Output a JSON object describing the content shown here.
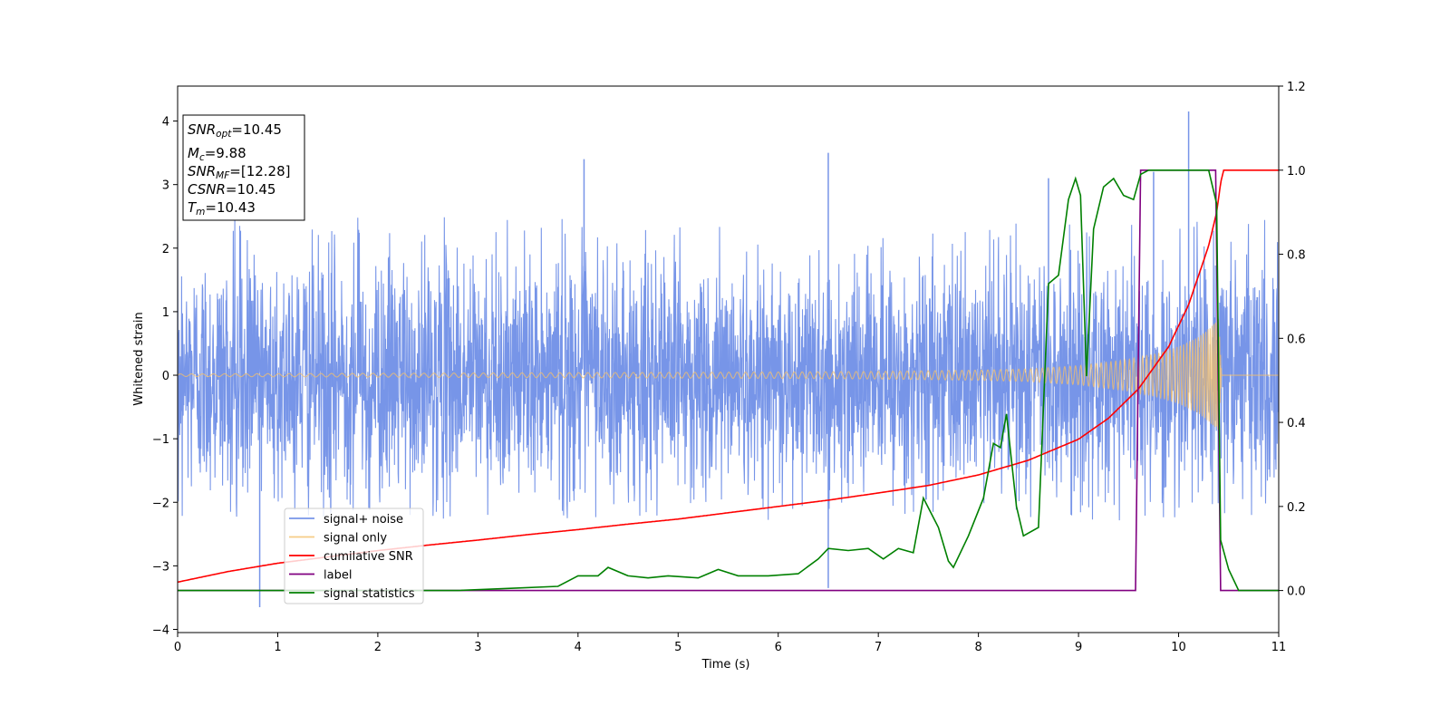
{
  "chart_data": {
    "type": "line",
    "title": "",
    "xlabel": "Time (s)",
    "ylabel": "Whitened strain",
    "xlim": [
      0,
      11
    ],
    "ylim": [
      -4.05,
      4.55
    ],
    "y2lim": [
      -0.1,
      1.2
    ],
    "grid": false,
    "legend_location": "lower-left",
    "x_ticks": [
      {
        "value": 0,
        "label": "0"
      },
      {
        "value": 1,
        "label": "1"
      },
      {
        "value": 2,
        "label": "2"
      },
      {
        "value": 3,
        "label": "3"
      },
      {
        "value": 4,
        "label": "4"
      },
      {
        "value": 5,
        "label": "5"
      },
      {
        "value": 6,
        "label": "6"
      },
      {
        "value": 7,
        "label": "7"
      },
      {
        "value": 8,
        "label": "8"
      },
      {
        "value": 9,
        "label": "9"
      },
      {
        "value": 10,
        "label": "10"
      },
      {
        "value": 11,
        "label": "11"
      }
    ],
    "y_ticks": [
      {
        "value": -4,
        "label": "−4"
      },
      {
        "value": -3,
        "label": "−3"
      },
      {
        "value": -2,
        "label": "−2"
      },
      {
        "value": -1,
        "label": "−1"
      },
      {
        "value": 0,
        "label": "0"
      },
      {
        "value": 1,
        "label": "1"
      },
      {
        "value": 2,
        "label": "2"
      },
      {
        "value": 3,
        "label": "3"
      },
      {
        "value": 4,
        "label": "4"
      }
    ],
    "y2_ticks": [
      {
        "value": 0.0,
        "label": "0.0"
      },
      {
        "value": 0.2,
        "label": "0.2"
      },
      {
        "value": 0.4,
        "label": "0.4"
      },
      {
        "value": 0.6,
        "label": "0.6"
      },
      {
        "value": 0.8,
        "label": "0.8"
      },
      {
        "value": 1.0,
        "label": "1.0"
      },
      {
        "value": 1.2,
        "label": "1.2"
      }
    ],
    "annotation": {
      "lines": [
        {
          "sym": "SNR",
          "sub": "opt",
          "value": "=10.45"
        },
        {
          "sym": "M",
          "sub": "c",
          "value": "=9.88"
        },
        {
          "sym": "SNR",
          "sub": "MF",
          "value": "=[12.28]"
        },
        {
          "sym": "CSNR",
          "sub": "",
          "value": "=10.45"
        },
        {
          "sym": "T",
          "sub": "m",
          "value": "=10.43"
        }
      ]
    },
    "series": [
      {
        "name": "signal+ noise",
        "color": "#7795e8",
        "axis": "left",
        "style": "noise",
        "noise_envelope": {
          "baseline_peak": 2.5,
          "max_excursion": 4.15,
          "min_excursion": -3.65
        },
        "notable_peaks": [
          [
            0.82,
            -3.65
          ],
          [
            4.06,
            3.4
          ],
          [
            6.5,
            3.5
          ],
          [
            6.5,
            -3.35
          ],
          [
            8.7,
            3.1
          ],
          [
            9.75,
            3.2
          ],
          [
            10.1,
            4.15
          ]
        ]
      },
      {
        "name": "signal only",
        "color": "#f5c06a",
        "axis": "left",
        "style": "chirp",
        "amplitude": [
          [
            0,
            0.02
          ],
          [
            2,
            0.03
          ],
          [
            4,
            0.04
          ],
          [
            6,
            0.05
          ],
          [
            7,
            0.06
          ],
          [
            8,
            0.08
          ],
          [
            8.5,
            0.1
          ],
          [
            9,
            0.15
          ],
          [
            9.5,
            0.25
          ],
          [
            9.8,
            0.35
          ],
          [
            10.0,
            0.45
          ],
          [
            10.2,
            0.6
          ],
          [
            10.35,
            0.8
          ],
          [
            10.4,
            0.9
          ],
          [
            10.43,
            0.0
          ],
          [
            11,
            0.0
          ]
        ]
      },
      {
        "name": "cumilative SNR",
        "color": "#ff0000",
        "axis": "right",
        "x": [
          0,
          0.5,
          1,
          1.5,
          2,
          2.5,
          3,
          3.5,
          4,
          4.5,
          5,
          5.5,
          6,
          6.5,
          7,
          7.5,
          8,
          8.5,
          9,
          9.3,
          9.6,
          9.9,
          10.1,
          10.3,
          10.38,
          10.42,
          10.45,
          11
        ],
        "values": [
          0.02,
          0.045,
          0.065,
          0.08,
          0.095,
          0.108,
          0.12,
          0.133,
          0.145,
          0.158,
          0.17,
          0.185,
          0.2,
          0.215,
          0.232,
          0.25,
          0.275,
          0.31,
          0.36,
          0.41,
          0.48,
          0.58,
          0.68,
          0.82,
          0.9,
          0.97,
          1.0,
          1.0
        ]
      },
      {
        "name": "label",
        "color": "#800080",
        "axis": "right",
        "x": [
          0,
          9.57,
          9.62,
          10.37,
          10.42,
          11
        ],
        "values": [
          0,
          0,
          1,
          1,
          0,
          0
        ]
      },
      {
        "name": "signal statistics",
        "color": "#008000",
        "axis": "right",
        "x": [
          0,
          1,
          2,
          2.8,
          3.3,
          3.8,
          4.0,
          4.2,
          4.3,
          4.5,
          4.7,
          4.9,
          5.2,
          5.4,
          5.6,
          5.9,
          6.2,
          6.4,
          6.5,
          6.7,
          6.9,
          7.05,
          7.2,
          7.35,
          7.45,
          7.6,
          7.7,
          7.75,
          7.9,
          8.05,
          8.15,
          8.22,
          8.28,
          8.38,
          8.45,
          8.6,
          8.7,
          8.8,
          8.9,
          8.97,
          9.02,
          9.08,
          9.15,
          9.25,
          9.35,
          9.45,
          9.55,
          9.62,
          9.7,
          9.9,
          10.1,
          10.3,
          10.38,
          10.42,
          10.5,
          10.6,
          11
        ],
        "values": [
          0,
          0,
          0,
          0.0,
          0.005,
          0.01,
          0.035,
          0.035,
          0.055,
          0.035,
          0.03,
          0.035,
          0.03,
          0.05,
          0.035,
          0.035,
          0.04,
          0.075,
          0.1,
          0.095,
          0.1,
          0.075,
          0.1,
          0.09,
          0.22,
          0.15,
          0.07,
          0.055,
          0.13,
          0.22,
          0.35,
          0.34,
          0.42,
          0.2,
          0.13,
          0.15,
          0.73,
          0.75,
          0.93,
          0.98,
          0.94,
          0.51,
          0.86,
          0.96,
          0.98,
          0.94,
          0.93,
          0.99,
          1.0,
          1.0,
          1.0,
          1.0,
          0.92,
          0.12,
          0.05,
          0.0,
          0.0
        ]
      }
    ]
  }
}
